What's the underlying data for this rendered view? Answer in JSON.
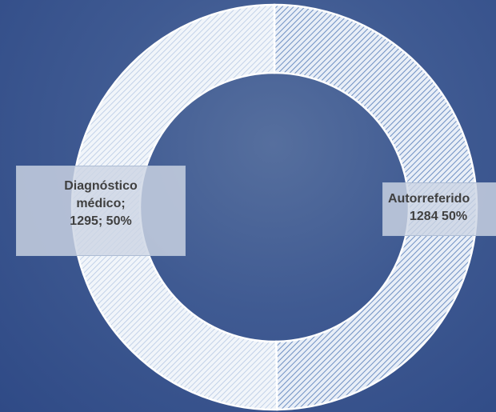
{
  "chart_data": {
    "type": "donut",
    "categories": [
      "Autorreferido",
      "Diagnóstico médico;"
    ],
    "values": [
      1284,
      1295
    ],
    "value_labels": [
      "1284 50%",
      "1295; 50%"
    ],
    "colors": [
      "#b9cde6",
      "#dfe8f4"
    ]
  }
}
